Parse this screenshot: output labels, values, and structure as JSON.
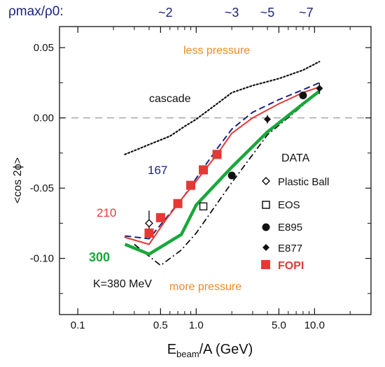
{
  "chart_data": {
    "type": "line",
    "xscale": "log",
    "xlim": [
      0.07,
      30
    ],
    "ylim": [
      -0.14,
      0.065
    ],
    "xlabel_main": "E",
    "xlabel_sub": "beam",
    "xlabel_rest": "/A (GeV)",
    "ylabel": "<cos 2ϕ>",
    "x_ticks": [
      {
        "v": 0.1,
        "label": "0.1"
      },
      {
        "v": 0.5,
        "label": "0.5"
      },
      {
        "v": 1.0,
        "label": "1.0"
      },
      {
        "v": 5.0,
        "label": "5.0"
      },
      {
        "v": 10.0,
        "label": "10.0"
      }
    ],
    "y_ticks": [
      {
        "v": 0.05,
        "label": "0.05"
      },
      {
        "v": 0.0,
        "label": "0.00"
      },
      {
        "v": -0.05,
        "label": "-0.05"
      },
      {
        "v": -0.1,
        "label": "-0.10"
      }
    ],
    "top_axis": {
      "label": "ρmax/ρ0:",
      "ticks": [
        {
          "v": 0.55,
          "label": "~2"
        },
        {
          "v": 2.0,
          "label": "~3"
        },
        {
          "v": 4.0,
          "label": "~5"
        },
        {
          "v": 8.5,
          "label": "~7"
        }
      ]
    },
    "zero_line": 0.0,
    "series": [
      {
        "name": "cascade",
        "style": "dotted",
        "color": "#111111",
        "x": [
          0.25,
          0.4,
          0.6,
          0.8,
          1.0,
          1.5,
          2.0,
          3.0,
          5.0,
          8.0,
          11.0
        ],
        "y": [
          -0.026,
          -0.019,
          -0.013,
          -0.006,
          -0.001,
          0.01,
          0.018,
          0.023,
          0.028,
          0.034,
          0.04
        ]
      },
      {
        "name": "167",
        "style": "dashed",
        "color": "#1a237e",
        "x": [
          0.25,
          0.4,
          0.6,
          0.8,
          1.0,
          1.5,
          2.0,
          3.0,
          5.0,
          8.0,
          11.0
        ],
        "y": [
          -0.084,
          -0.086,
          -0.068,
          -0.055,
          -0.043,
          -0.022,
          -0.008,
          0.004,
          0.013,
          0.02,
          0.025
        ]
      },
      {
        "name": "210",
        "style": "solid-thin",
        "color": "#e53935",
        "x": [
          0.25,
          0.4,
          0.55,
          0.75,
          1.0,
          1.5,
          2.0,
          3.0,
          5.0,
          8.0,
          11.0
        ],
        "y": [
          -0.085,
          -0.09,
          -0.073,
          -0.058,
          -0.045,
          -0.026,
          -0.011,
          0.0,
          0.01,
          0.018,
          0.022
        ]
      },
      {
        "name": "300",
        "style": "solid-thick",
        "color": "#18a83a",
        "x": [
          0.25,
          0.4,
          0.75,
          1.0,
          2.0,
          4.0,
          8.0,
          11.0
        ],
        "y": [
          -0.09,
          -0.097,
          -0.083,
          -0.062,
          -0.035,
          -0.01,
          0.01,
          0.019
        ]
      },
      {
        "name": "dash-dot",
        "style": "dashdot",
        "color": "#111111",
        "x": [
          0.3,
          0.5,
          0.75,
          1.0,
          2.0,
          4.0,
          8.0,
          11.0
        ],
        "y": [
          -0.09,
          -0.105,
          -0.094,
          -0.082,
          -0.046,
          -0.012,
          0.009,
          0.02
        ]
      }
    ],
    "points": [
      {
        "set": "Plastic Ball",
        "marker": "diamond-open",
        "x": 0.4,
        "y": -0.075,
        "err": 0.009
      },
      {
        "set": "EOS",
        "marker": "square-open",
        "x": 1.15,
        "y": -0.063,
        "err": 0
      },
      {
        "set": "E895",
        "marker": "circle",
        "x": 2.0,
        "y": -0.041,
        "err": 0
      },
      {
        "set": "E895",
        "marker": "circle",
        "x": 8.0,
        "y": 0.016,
        "err": 0
      },
      {
        "set": "E877",
        "marker": "diamond",
        "x": 4.0,
        "y": -0.001,
        "err": 0.003
      },
      {
        "set": "E877",
        "marker": "diamond",
        "x": 11.0,
        "y": 0.021,
        "err": 0.004
      },
      {
        "set": "FOPI",
        "marker": "square-red",
        "x": 0.4,
        "y": -0.082,
        "err": 0
      },
      {
        "set": "FOPI",
        "marker": "square-red",
        "x": 0.5,
        "y": -0.071,
        "err": 0
      },
      {
        "set": "FOPI",
        "marker": "square-red",
        "x": 0.7,
        "y": -0.061,
        "err": 0
      },
      {
        "set": "FOPI",
        "marker": "square-red",
        "x": 0.9,
        "y": -0.048,
        "err": 0
      },
      {
        "set": "FOPI",
        "marker": "square-red",
        "x": 1.15,
        "y": -0.037,
        "err": 0
      },
      {
        "set": "FOPI",
        "marker": "square-red",
        "x": 1.5,
        "y": -0.026,
        "err": 0
      }
    ],
    "legend": {
      "title": "DATA",
      "placement": "right",
      "entries": [
        {
          "marker": "diamond-open",
          "label": "Plastic Ball",
          "color": "#111111"
        },
        {
          "marker": "square-open",
          "label": "EOS",
          "color": "#111111"
        },
        {
          "marker": "circle",
          "label": "E895",
          "color": "#111111"
        },
        {
          "marker": "diamond",
          "label": "E877",
          "color": "#111111"
        },
        {
          "marker": "square-red",
          "label": "FOPI",
          "color": "#e53935"
        }
      ]
    },
    "annotations": [
      {
        "text": "less pressure",
        "color": "#ef8a1c"
      },
      {
        "text": "more pressure",
        "color": "#ef8a1c"
      },
      {
        "text": "cascade",
        "color": "#111111"
      },
      {
        "text": "167",
        "color": "#1a237e"
      },
      {
        "text": "210",
        "color": "#e53935"
      },
      {
        "text": "300",
        "color": "#18a83a"
      },
      {
        "text": "K=380 MeV",
        "color": "#111111"
      }
    ]
  }
}
